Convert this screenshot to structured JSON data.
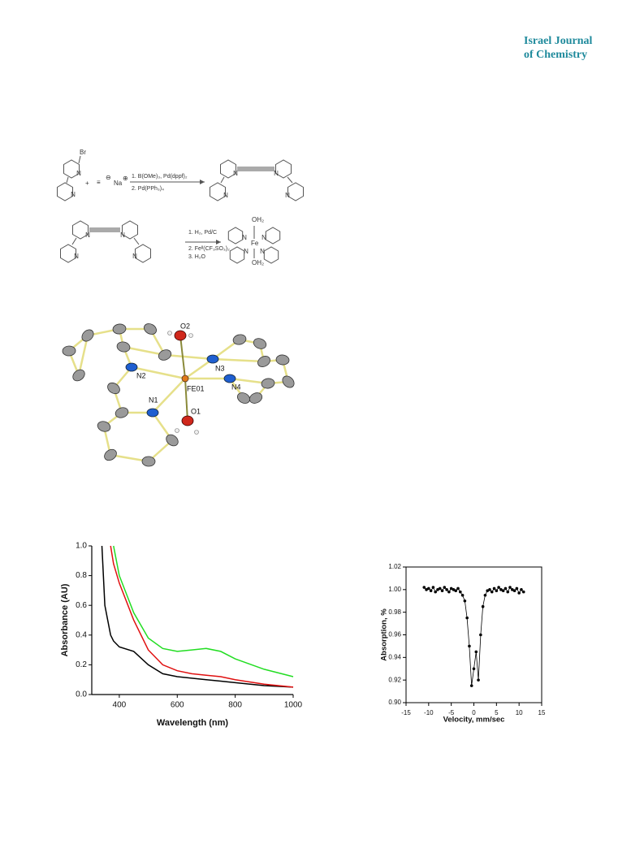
{
  "header": {
    "journal_line1": "Israel Journal",
    "journal_line2": "of Chemistry"
  },
  "scheme": {
    "br": "Br",
    "atom_n": "N",
    "plus": "+",
    "alkyne": "≡",
    "minus": "⊖",
    "na": "Na",
    "plus_charge": "⊕",
    "step1_a": "1. B(OMe)₃, Pd(dppf)₂",
    "step1_b": "2. Pd(PPh₃)₄",
    "step2_a": "1. H₂, Pd/C",
    "step2_b": "2. Feᴵᴵ(CF₃SO₃)₂",
    "step2_c": "3. H₂O",
    "oh2": "OH₂",
    "fe": "Fe"
  },
  "structure": {
    "labels": [
      "O2",
      "N2",
      "N3",
      "FE01",
      "N4",
      "N1",
      "O1"
    ]
  },
  "chart_data": [
    {
      "type": "line",
      "xlabel": "Wavelength (nm)",
      "ylabel": "Absorbance (AU)",
      "x": [
        340,
        350,
        370,
        380,
        400,
        450,
        500,
        550,
        600,
        650,
        700,
        750,
        800,
        900,
        1000
      ],
      "series": [
        {
          "color": "#000000",
          "values": [
            1.0,
            0.6,
            0.4,
            0.36,
            0.32,
            0.29,
            0.2,
            0.14,
            0.12,
            0.11,
            0.1,
            0.09,
            0.08,
            0.06,
            0.05
          ]
        },
        {
          "color": "#e01010",
          "values": [
            null,
            null,
            1.0,
            0.88,
            0.75,
            0.5,
            0.3,
            0.2,
            0.16,
            0.14,
            0.13,
            0.12,
            0.1,
            0.07,
            0.05
          ]
        },
        {
          "color": "#22dd22",
          "values": [
            null,
            null,
            null,
            1.0,
            0.8,
            0.55,
            0.38,
            0.31,
            0.29,
            0.3,
            0.31,
            0.29,
            0.24,
            0.17,
            0.12
          ]
        }
      ],
      "xlim": [
        305,
        1000
      ],
      "xticks": [
        400,
        600,
        800,
        1000
      ],
      "ylim": [
        0,
        1.0
      ],
      "yticks": [
        {
          "value": 0,
          "label": "0.0"
        },
        0.2,
        0.4,
        0.6,
        0.8,
        {
          "value": 1.0,
          "label": "1.0"
        }
      ]
    },
    {
      "type": "scatter",
      "xlabel": "Velocity, mm/sec",
      "ylabel": "Absorption, %",
      "x": [
        -11,
        -10.5,
        -10,
        -9.5,
        -9,
        -8.5,
        -8,
        -7.5,
        -7,
        -6.5,
        -6,
        -5.5,
        -5,
        -4.5,
        -4,
        -3.5,
        -3,
        -2.5,
        -2,
        -1.5,
        -1,
        -0.5,
        0,
        0.5,
        1,
        1.5,
        2,
        2.5,
        3,
        3.5,
        4,
        4.5,
        5,
        5.5,
        6,
        6.5,
        7,
        7.5,
        8,
        8.5,
        9,
        9.5,
        10,
        10.5,
        11
      ],
      "series": [
        {
          "color": "#000000",
          "values": [
            1.002,
            1.0,
            1.001,
            0.999,
            1.002,
            0.998,
            1.0,
            1.001,
            0.999,
            1.002,
            1.0,
            0.998,
            1.001,
            1.0,
            0.999,
            1.001,
            0.998,
            0.995,
            0.99,
            0.975,
            0.95,
            0.915,
            0.93,
            0.945,
            0.92,
            0.96,
            0.985,
            0.995,
            0.999,
            1.0,
            0.998,
            1.001,
            0.999,
            1.002,
            1.0,
            0.999,
            1.001,
            0.998,
            1.002,
            1.0,
            0.999,
            1.001,
            0.997,
            1.0,
            0.998
          ]
        }
      ],
      "xlim": [
        -15,
        15
      ],
      "xticks": [
        -15,
        -10,
        -5,
        0,
        5,
        10,
        15
      ],
      "ylim": [
        0.9,
        1.02
      ],
      "yticks": [
        {
          "value": 0.9,
          "label": "0.90"
        },
        0.92,
        0.94,
        0.96,
        0.98,
        {
          "value": 1.0,
          "label": "1.00"
        },
        1.02
      ]
    }
  ]
}
